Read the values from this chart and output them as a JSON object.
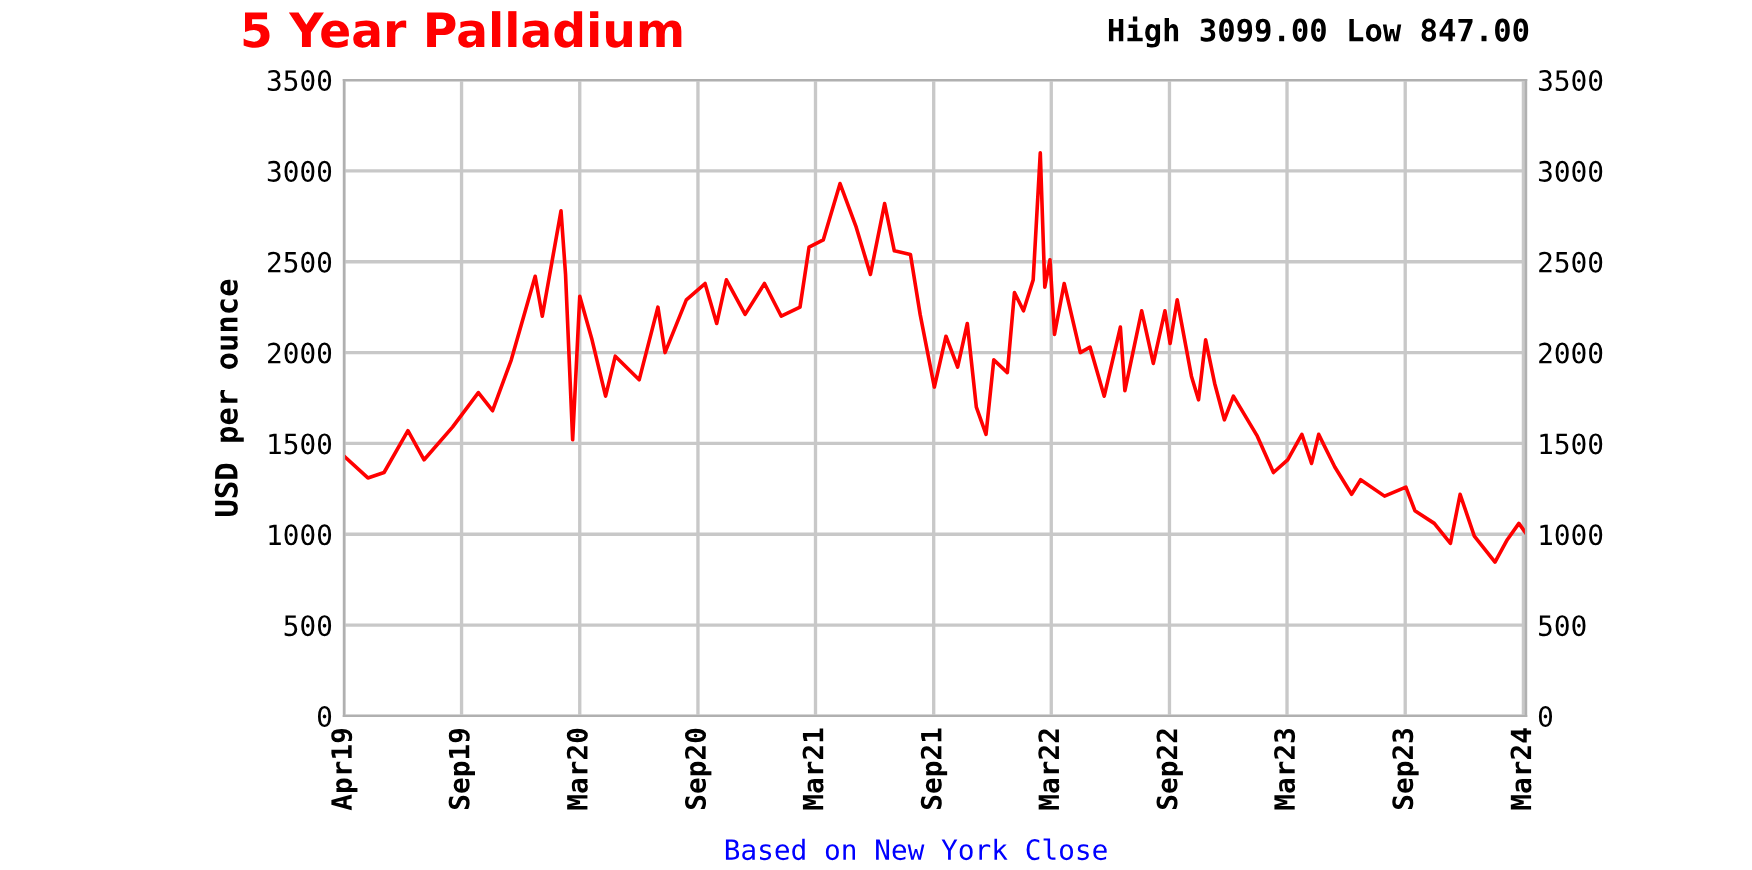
{
  "chart_data": {
    "type": "line",
    "title": "5 Year Palladium",
    "subtitle": "High 3099.00 Low 847.00",
    "ylabel": "USD per ounce",
    "annotations": [
      "Based on New York Close"
    ],
    "x": [
      "2019-04-01",
      "2019-05-08",
      "2019-06-02",
      "2019-07-09",
      "2019-08-03",
      "2019-09-16",
      "2019-10-26",
      "2019-11-17",
      "2019-12-16",
      "2020-01-22",
      "2020-02-02",
      "2020-03-02",
      "2020-03-09",
      "2020-03-20",
      "2020-03-31",
      "2020-04-19",
      "2020-05-10",
      "2020-05-25",
      "2020-07-01",
      "2020-07-30",
      "2020-08-10",
      "2020-09-12",
      "2020-10-11",
      "2020-10-29",
      "2020-11-13",
      "2020-12-12",
      "2021-01-11",
      "2021-02-06",
      "2021-03-07",
      "2021-03-21",
      "2021-04-12",
      "2021-05-08",
      "2021-06-02",
      "2021-06-24",
      "2021-07-16",
      "2021-07-31",
      "2021-08-25",
      "2021-09-09",
      "2021-10-01",
      "2021-10-19",
      "2021-11-06",
      "2021-11-21",
      "2021-12-05",
      "2021-12-20",
      "2022-01-01",
      "2022-01-22",
      "2022-02-02",
      "2022-02-16",
      "2022-03-03",
      "2022-03-14",
      "2022-03-21",
      "2022-03-29",
      "2022-04-05",
      "2022-04-20",
      "2022-05-15",
      "2022-05-30",
      "2022-06-21",
      "2022-07-16",
      "2022-07-23",
      "2022-08-18",
      "2022-09-05",
      "2022-09-23",
      "2022-10-01",
      "2022-10-12",
      "2022-11-03",
      "2022-11-14",
      "2022-11-25",
      "2022-12-09",
      "2022-12-24",
      "2023-01-07",
      "2023-02-13",
      "2023-03-10",
      "2023-04-01",
      "2023-04-23",
      "2023-05-08",
      "2023-05-19",
      "2023-06-13",
      "2023-07-09",
      "2023-07-23",
      "2023-08-29",
      "2023-10-01",
      "2023-10-15",
      "2023-11-14",
      "2023-12-09",
      "2023-12-24",
      "2024-01-15",
      "2024-02-16",
      "2024-03-06",
      "2024-03-24",
      "2024-04-03"
    ],
    "series": [
      {
        "color": "#ff0000",
        "values": [
          1430,
          1310,
          1340,
          1570,
          1410,
          1590,
          1780,
          1680,
          1960,
          2420,
          2200,
          2780,
          2430,
          1520,
          2310,
          2070,
          1760,
          1980,
          1850,
          2250,
          2000,
          2290,
          2380,
          2160,
          2400,
          2210,
          2380,
          2200,
          2250,
          2580,
          2620,
          2930,
          2690,
          2430,
          2820,
          2560,
          2540,
          2210,
          1810,
          2090,
          1920,
          2160,
          1700,
          1550,
          1960,
          1890,
          2330,
          2230,
          2400,
          3099,
          2360,
          2510,
          2100,
          2380,
          2000,
          2030,
          1760,
          2140,
          1790,
          2230,
          1940,
          2230,
          2050,
          2290,
          1870,
          1740,
          2070,
          1830,
          1630,
          1760,
          1540,
          1340,
          1410,
          1550,
          1390,
          1550,
          1370,
          1220,
          1300,
          1210,
          1260,
          1130,
          1060,
          950,
          1220,
          990,
          847,
          970,
          1060,
          1010
        ]
      }
    ],
    "xlim": [
      "2019-04-01",
      "2024-04-04"
    ],
    "xticks": [
      {
        "value": "2019-04-01",
        "label": "Apr19"
      },
      {
        "value": "2019-09-30",
        "label": "Sep19"
      },
      {
        "value": "2020-03-31",
        "label": "Mar20"
      },
      {
        "value": "2020-09-30",
        "label": "Sep20"
      },
      {
        "value": "2021-03-31",
        "label": "Mar21"
      },
      {
        "value": "2021-09-30",
        "label": "Sep21"
      },
      {
        "value": "2022-03-31",
        "label": "Mar22"
      },
      {
        "value": "2022-09-30",
        "label": "Sep22"
      },
      {
        "value": "2023-03-31",
        "label": "Mar23"
      },
      {
        "value": "2023-09-30",
        "label": "Sep23"
      },
      {
        "value": "2024-03-31",
        "label": "Mar24"
      }
    ],
    "ylim": [
      0,
      3500
    ],
    "yticks": [
      0,
      500,
      1000,
      1500,
      2000,
      2500,
      3000,
      3500
    ],
    "y2lim": [
      0,
      3500
    ],
    "y2ticks": [
      0,
      500,
      1000,
      1500,
      2000,
      2500,
      3000,
      3500
    ],
    "grid": true,
    "marker": "none",
    "line_style": "solid"
  }
}
